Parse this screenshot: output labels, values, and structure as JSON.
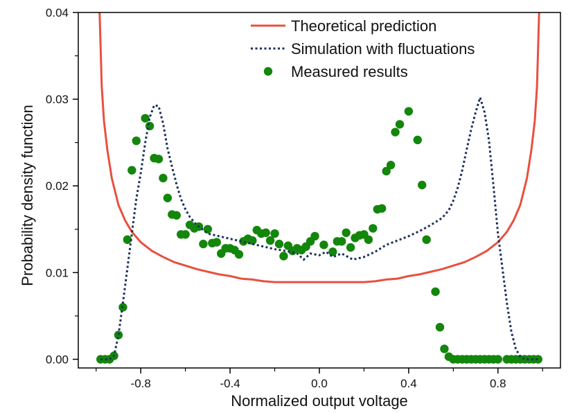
{
  "chart_data": {
    "type": "line",
    "title": "",
    "xlabel": "Normalized output voltage",
    "ylabel": "Probability density function",
    "xlim": [
      -1.08,
      1.08
    ],
    "ylim": [
      -0.001,
      0.04
    ],
    "xticks": [
      -0.8,
      -0.4,
      0.0,
      0.4,
      0.8
    ],
    "xtick_labels": [
      "-0.8",
      "-0.4",
      "0.0",
      "0.4",
      "0.8"
    ],
    "yticks": [
      0.0,
      0.01,
      0.02,
      0.03,
      0.04
    ],
    "ytick_labels": [
      "0.00",
      "0.01",
      "0.02",
      "0.03",
      "0.04"
    ],
    "grid": false,
    "legend_position": "top-right",
    "series": [
      {
        "name": "Theoretical prediction",
        "style": "solid-line",
        "color": "#e8503f",
        "x": [
          -0.985,
          -0.975,
          -0.965,
          -0.95,
          -0.93,
          -0.9,
          -0.87,
          -0.84,
          -0.8,
          -0.75,
          -0.7,
          -0.65,
          -0.6,
          -0.55,
          -0.5,
          -0.45,
          -0.4,
          -0.35,
          -0.3,
          -0.25,
          -0.2,
          -0.15,
          -0.1,
          -0.05,
          0.0,
          0.05,
          0.1,
          0.15,
          0.2,
          0.25,
          0.3,
          0.35,
          0.4,
          0.45,
          0.5,
          0.55,
          0.6,
          0.65,
          0.7,
          0.75,
          0.8,
          0.84,
          0.87,
          0.9,
          0.93,
          0.95,
          0.965,
          0.975,
          0.985
        ],
        "values": [
          0.0405,
          0.0315,
          0.0275,
          0.0242,
          0.0209,
          0.0178,
          0.016,
          0.0147,
          0.0135,
          0.0125,
          0.0118,
          0.0112,
          0.0108,
          0.0104,
          0.0101,
          0.0098,
          0.0096,
          0.0093,
          0.0092,
          0.009,
          0.0089,
          0.0089,
          0.0089,
          0.0089,
          0.0089,
          0.0089,
          0.0089,
          0.0089,
          0.0089,
          0.009,
          0.0092,
          0.0093,
          0.0096,
          0.0098,
          0.0101,
          0.0104,
          0.0108,
          0.0112,
          0.0118,
          0.0125,
          0.0135,
          0.0147,
          0.016,
          0.0178,
          0.0209,
          0.0242,
          0.0275,
          0.0315,
          0.0405
        ]
      },
      {
        "name": "Simulation with fluctuations",
        "style": "dotted-line",
        "color": "#1a2f5a",
        "x": [
          -0.98,
          -0.94,
          -0.92,
          -0.9,
          -0.88,
          -0.86,
          -0.84,
          -0.82,
          -0.8,
          -0.78,
          -0.76,
          -0.74,
          -0.72,
          -0.7,
          -0.68,
          -0.66,
          -0.64,
          -0.62,
          -0.6,
          -0.58,
          -0.55,
          -0.5,
          -0.45,
          -0.4,
          -0.35,
          -0.3,
          -0.25,
          -0.2,
          -0.15,
          -0.1,
          -0.07,
          -0.04,
          0.0,
          0.03,
          0.06,
          0.1,
          0.15,
          0.2,
          0.25,
          0.3,
          0.35,
          0.4,
          0.45,
          0.5,
          0.55,
          0.58,
          0.6,
          0.62,
          0.64,
          0.66,
          0.68,
          0.7,
          0.72,
          0.74,
          0.76,
          0.78,
          0.8,
          0.82,
          0.84,
          0.86,
          0.88,
          0.9,
          0.92,
          0.94,
          0.98
        ],
        "values": [
          0.0,
          0.0,
          0.0004,
          0.0028,
          0.0065,
          0.0105,
          0.0145,
          0.0185,
          0.0215,
          0.025,
          0.0279,
          0.0293,
          0.0292,
          0.0272,
          0.0243,
          0.0222,
          0.0202,
          0.0185,
          0.0173,
          0.0164,
          0.0155,
          0.0145,
          0.0142,
          0.0139,
          0.0136,
          0.0133,
          0.013,
          0.0127,
          0.0125,
          0.0122,
          0.0115,
          0.0122,
          0.012,
          0.0124,
          0.0118,
          0.0122,
          0.0115,
          0.0118,
          0.0124,
          0.0132,
          0.0137,
          0.0142,
          0.0148,
          0.0155,
          0.0163,
          0.0172,
          0.0183,
          0.0198,
          0.0218,
          0.0242,
          0.0265,
          0.0285,
          0.0302,
          0.0285,
          0.0252,
          0.02,
          0.0145,
          0.0105,
          0.0065,
          0.0032,
          0.0012,
          0.0003,
          0.0,
          0.0,
          0.0
        ]
      },
      {
        "name": "Measured results",
        "style": "markers",
        "color": "#13860c",
        "x": [
          -0.98,
          -0.96,
          -0.94,
          -0.92,
          -0.9,
          -0.88,
          -0.86,
          -0.84,
          -0.82,
          -0.78,
          -0.76,
          -0.74,
          -0.72,
          -0.7,
          -0.68,
          -0.66,
          -0.64,
          -0.62,
          -0.6,
          -0.58,
          -0.56,
          -0.54,
          -0.52,
          -0.5,
          -0.48,
          -0.46,
          -0.44,
          -0.42,
          -0.4,
          -0.38,
          -0.36,
          -0.34,
          -0.32,
          -0.3,
          -0.28,
          -0.26,
          -0.24,
          -0.22,
          -0.2,
          -0.18,
          -0.16,
          -0.14,
          -0.12,
          -0.1,
          -0.08,
          -0.06,
          -0.04,
          -0.02,
          0.02,
          0.06,
          0.08,
          0.1,
          0.12,
          0.14,
          0.16,
          0.18,
          0.2,
          0.22,
          0.24,
          0.26,
          0.28,
          0.3,
          0.32,
          0.34,
          0.36,
          0.4,
          0.44,
          0.46,
          0.48,
          0.52,
          0.54,
          0.56,
          0.58,
          0.6,
          0.62,
          0.64,
          0.66,
          0.68,
          0.7,
          0.72,
          0.74,
          0.76,
          0.78,
          0.8,
          0.84,
          0.86,
          0.88,
          0.9,
          0.92,
          0.94,
          0.96,
          0.98
        ],
        "values": [
          0.0,
          0.0,
          0.0,
          0.0004,
          0.0028,
          0.006,
          0.0138,
          0.0218,
          0.0252,
          0.0278,
          0.0269,
          0.0232,
          0.0231,
          0.0209,
          0.0186,
          0.0167,
          0.0166,
          0.0144,
          0.0144,
          0.0155,
          0.0151,
          0.0153,
          0.0133,
          0.015,
          0.0134,
          0.0135,
          0.0122,
          0.0128,
          0.0128,
          0.0126,
          0.0121,
          0.0136,
          0.0139,
          0.0137,
          0.0149,
          0.0145,
          0.0146,
          0.0137,
          0.0145,
          0.0133,
          0.0119,
          0.0131,
          0.0125,
          0.0128,
          0.0126,
          0.013,
          0.0136,
          0.0142,
          0.0132,
          0.0124,
          0.0136,
          0.0136,
          0.0146,
          0.0129,
          0.014,
          0.0143,
          0.0144,
          0.0138,
          0.0151,
          0.0173,
          0.0174,
          0.0217,
          0.0224,
          0.0262,
          0.0271,
          0.0286,
          0.0253,
          0.0201,
          0.0138,
          0.0078,
          0.0037,
          0.0012,
          0.0003,
          0.0,
          0.0,
          0.0,
          0.0,
          0.0,
          0.0,
          0.0,
          0.0,
          0.0,
          0.0,
          0.0,
          0.0,
          0.0,
          0.0,
          0.0,
          0.0,
          0.0,
          0.0,
          0.0
        ]
      }
    ]
  }
}
